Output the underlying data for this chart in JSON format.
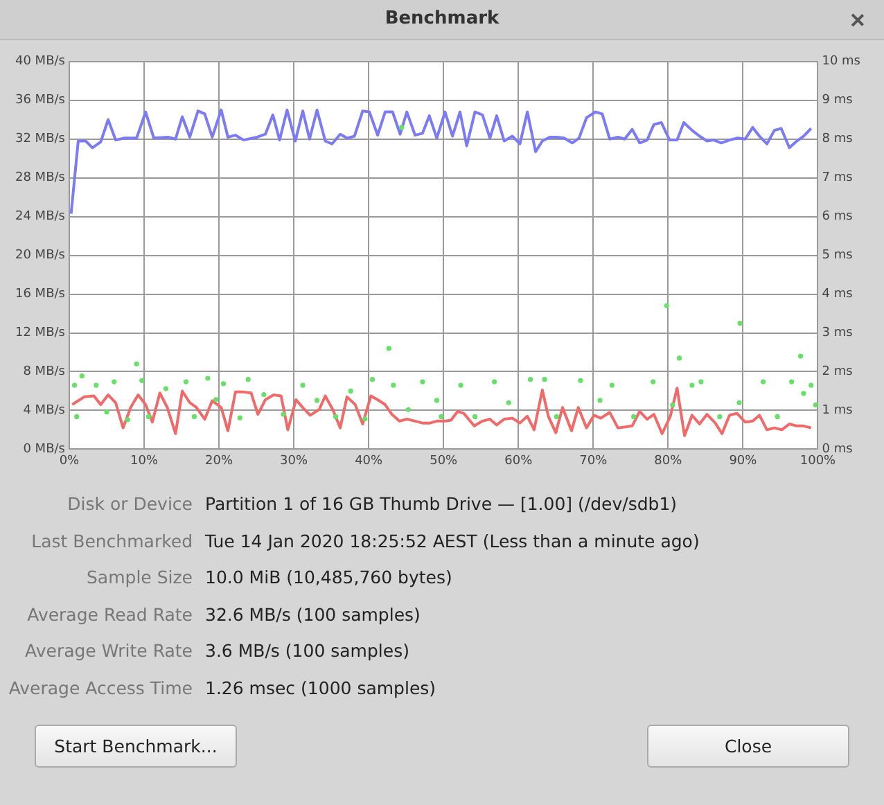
{
  "chart_data": {
    "type": "line",
    "title": "Benchmark",
    "xlim": [
      0,
      100
    ],
    "xticks": [
      {
        "value": 0,
        "label": "0%"
      },
      {
        "value": 10,
        "label": "10%"
      },
      {
        "value": 20,
        "label": "20%"
      },
      {
        "value": 30,
        "label": "30%"
      },
      {
        "value": 40,
        "label": "40%"
      },
      {
        "value": 50,
        "label": "50%"
      },
      {
        "value": 60,
        "label": "60%"
      },
      {
        "value": 70,
        "label": "70%"
      },
      {
        "value": 80,
        "label": "80%"
      },
      {
        "value": 90,
        "label": "90%"
      },
      {
        "value": 100,
        "label": "100%"
      }
    ],
    "ylim": [
      0,
      40
    ],
    "yticks": [
      {
        "value": 0,
        "label": "0 MB/s"
      },
      {
        "value": 4,
        "label": "4 MB/s"
      },
      {
        "value": 8,
        "label": "8 MB/s"
      },
      {
        "value": 12,
        "label": "12 MB/s"
      },
      {
        "value": 16,
        "label": "16 MB/s"
      },
      {
        "value": 20,
        "label": "20 MB/s"
      },
      {
        "value": 24,
        "label": "24 MB/s"
      },
      {
        "value": 28,
        "label": "28 MB/s"
      },
      {
        "value": 32,
        "label": "32 MB/s"
      },
      {
        "value": 36,
        "label": "36 MB/s"
      },
      {
        "value": 40,
        "label": "40 MB/s"
      }
    ],
    "y2lim": [
      0,
      10
    ],
    "y2ticks": [
      {
        "value": 0,
        "label": "0 ms"
      },
      {
        "value": 1,
        "label": "1 ms"
      },
      {
        "value": 2,
        "label": "2 ms"
      },
      {
        "value": 3,
        "label": "3 ms"
      },
      {
        "value": 4,
        "label": "4 ms"
      },
      {
        "value": 5,
        "label": "5 ms"
      },
      {
        "value": 6,
        "label": "6 ms"
      },
      {
        "value": 7,
        "label": "7 ms"
      },
      {
        "value": 8,
        "label": "8 ms"
      },
      {
        "value": 9,
        "label": "9 ms"
      },
      {
        "value": 10,
        "label": "10 ms"
      }
    ],
    "grid": true,
    "series": [
      {
        "type": "line",
        "color": "#7b7bf5",
        "x": [
          0.25,
          1.2,
          2.2,
          3.1,
          4.2,
          5.2,
          6.2,
          7.4,
          9.0,
          10.2,
          11.3,
          13.2,
          14.2,
          15.1,
          16.1,
          17.2,
          18.1,
          19.1,
          20.3,
          21.2,
          22.2,
          23.3,
          25.1,
          26.2,
          27.2,
          28.1,
          29.1,
          30.2,
          31.2,
          32.1,
          33.1,
          34.2,
          35.1,
          36.2,
          37.1,
          38.1,
          39.2,
          40.1,
          41.2,
          42.2,
          43.2,
          44.2,
          45.1,
          46.2,
          47.2,
          48.1,
          49.1,
          50.2,
          51.2,
          52.2,
          53.1,
          54.2,
          55.2,
          56.2,
          57.1,
          58.1,
          59.2,
          60.2,
          61.2,
          62.3,
          63.2,
          64.2,
          65.1,
          66.1,
          67.2,
          68.1,
          69.1,
          70.3,
          71.2,
          72.2,
          73.3,
          74.2,
          75.2,
          76.2,
          77.2,
          78.1,
          79.1,
          80.2,
          81.2,
          82.1,
          83.2,
          84.2,
          85.2,
          86.1,
          87.1,
          88.2,
          89.3,
          90.3,
          91.3,
          92.2,
          93.2,
          94.2,
          95.1,
          96.2,
          97.2,
          98.1,
          99.1
        ],
        "values": [
          24.3,
          31.8,
          31.8,
          31.1,
          31.7,
          34.0,
          31.9,
          32.1,
          32.1,
          34.8,
          32.1,
          32.2,
          32.0,
          34.3,
          32.2,
          34.9,
          34.6,
          32.2,
          35.0,
          32.2,
          32.4,
          31.9,
          32.2,
          32.5,
          34.5,
          31.9,
          35.0,
          31.8,
          34.9,
          32.0,
          35.0,
          31.8,
          31.5,
          32.5,
          32.1,
          32.3,
          34.9,
          34.8,
          32.4,
          34.8,
          34.8,
          32.5,
          34.8,
          32.4,
          32.6,
          34.4,
          32.1,
          34.8,
          32.3,
          34.8,
          31.3,
          34.8,
          34.5,
          32.1,
          34.4,
          31.8,
          32.3,
          31.5,
          34.8,
          30.7,
          31.8,
          32.2,
          32.2,
          32.1,
          31.6,
          32.1,
          34.2,
          34.8,
          34.6,
          32.0,
          32.2,
          32.0,
          33.0,
          31.6,
          31.9,
          33.5,
          33.7,
          31.9,
          31.9,
          33.7,
          32.9,
          32.3,
          31.8,
          31.9,
          31.6,
          31.9,
          32.1,
          32.0,
          33.2,
          32.3,
          31.5,
          32.9,
          33.1,
          31.1,
          31.8,
          32.3,
          33.1
        ]
      },
      {
        "type": "line",
        "color": "#f06a6a",
        "x": [
          0.4,
          2.0,
          3.3,
          4.2,
          5.2,
          6.2,
          7.2,
          8.2,
          9.2,
          10.2,
          11.1,
          12.1,
          13.1,
          14.2,
          15.1,
          16.1,
          17.0,
          18.1,
          19.1,
          20.3,
          21.2,
          22.2,
          23.3,
          24.3,
          25.2,
          26.2,
          27.3,
          28.3,
          29.2,
          30.3,
          31.3,
          32.2,
          33.4,
          34.2,
          35.2,
          36.2,
          37.1,
          38.2,
          39.2,
          40.3,
          41.2,
          42.2,
          43.1,
          44.1,
          45.1,
          46.2,
          47.2,
          48.2,
          49.1,
          50.3,
          51.0,
          51.9,
          52.7,
          54.1,
          55.2,
          56.2,
          57.1,
          58.1,
          59.2,
          60.2,
          61.2,
          62.1,
          63.2,
          64.0,
          65.0,
          65.9,
          67.1,
          68.0,
          69.1,
          70.1,
          71.0,
          72.2,
          73.3,
          74.3,
          75.2,
          76.2,
          77.2,
          78.1,
          79.2,
          80.3,
          81.2,
          82.2,
          83.2,
          84.2,
          85.2,
          86.3,
          87.2,
          88.2,
          89.2,
          90.3,
          91.3,
          92.2,
          93.2,
          94.2,
          95.2,
          96.2,
          97.2,
          98.1,
          99.1
        ],
        "values": [
          4.6,
          5.4,
          5.5,
          4.6,
          5.6,
          4.8,
          2.2,
          4.3,
          5.6,
          4.6,
          2.8,
          5.8,
          4.3,
          1.6,
          6.0,
          4.8,
          4.3,
          3.1,
          5.0,
          4.3,
          1.9,
          5.9,
          5.9,
          5.8,
          3.6,
          5.1,
          5.6,
          5.5,
          2.0,
          5.1,
          4.2,
          3.5,
          4.1,
          5.5,
          4.1,
          2.2,
          5.4,
          4.6,
          2.6,
          5.5,
          5.1,
          4.6,
          3.6,
          2.9,
          3.1,
          2.9,
          2.7,
          2.7,
          2.9,
          2.9,
          3.0,
          3.9,
          3.7,
          2.4,
          2.9,
          3.1,
          2.5,
          3.1,
          3.2,
          2.7,
          3.4,
          2.0,
          6.1,
          3.4,
          1.7,
          4.3,
          1.9,
          4.3,
          2.2,
          3.5,
          3.2,
          3.8,
          2.2,
          2.3,
          2.4,
          3.9,
          3.1,
          3.6,
          1.6,
          3.4,
          6.3,
          1.4,
          3.5,
          2.6,
          3.6,
          2.7,
          1.6,
          3.5,
          3.7,
          2.8,
          2.9,
          3.5,
          2.0,
          2.2,
          2.0,
          2.6,
          2.4,
          2.4,
          2.2
        ]
      },
      {
        "type": "scatter",
        "axis": "y2",
        "marker": "circle",
        "color": "#66e066",
        "x": [
          0.7,
          1.0,
          1.7,
          3.6,
          5.0,
          6.0,
          7.8,
          9.0,
          9.7,
          10.6,
          12.9,
          15.6,
          16.7,
          18.5,
          19.6,
          20.6,
          22.8,
          23.9,
          26.0,
          28.6,
          31.2,
          33.1,
          35.6,
          37.6,
          39.5,
          40.5,
          42.7,
          43.3,
          44.4,
          45.3,
          47.2,
          49.1,
          49.7,
          52.3,
          54.2,
          56.8,
          58.7,
          61.6,
          63.5,
          65.1,
          68.3,
          70.9,
          72.5,
          75.4,
          78.0,
          79.8,
          80.6,
          81.5,
          83.2,
          84.4,
          86.9,
          89.5,
          89.6,
          92.7,
          94.6,
          96.5,
          97.7,
          98.1,
          99.1,
          99.7
        ],
        "values": [
          1.65,
          0.84,
          1.89,
          1.65,
          0.96,
          1.74,
          0.76,
          2.2,
          1.77,
          0.84,
          1.56,
          1.74,
          0.84,
          1.83,
          1.28,
          1.69,
          0.81,
          1.8,
          1.41,
          0.9,
          1.65,
          1.26,
          0.84,
          1.5,
          0.78,
          1.8,
          2.6,
          1.65,
          8.3,
          1.02,
          1.74,
          1.26,
          0.84,
          1.65,
          0.84,
          1.74,
          1.2,
          1.8,
          1.8,
          0.84,
          1.77,
          1.26,
          1.65,
          0.84,
          1.74,
          3.7,
          1.14,
          2.35,
          1.65,
          1.74,
          0.84,
          1.2,
          3.25,
          1.74,
          0.84,
          1.74,
          2.4,
          1.44,
          1.65,
          1.14
        ]
      }
    ],
    "annotations": [
      "Disk or Device",
      "Partition 1 of 16 GB Thumb Drive — [1.00] (/dev/sdb1)",
      "Last Benchmarked",
      "Tue 14 Jan 2020 18:25:52 AEST (Less than a minute ago)",
      "Sample Size",
      "10.0 MiB (10,485,760 bytes)",
      "Average Read Rate",
      "32.6 MB/s (100 samples)",
      "Average Write Rate",
      "3.6 MB/s (100 samples)",
      "Average Access Time",
      "1.26 msec (1000 samples)",
      "Start Benchmark...",
      "Close"
    ]
  }
}
